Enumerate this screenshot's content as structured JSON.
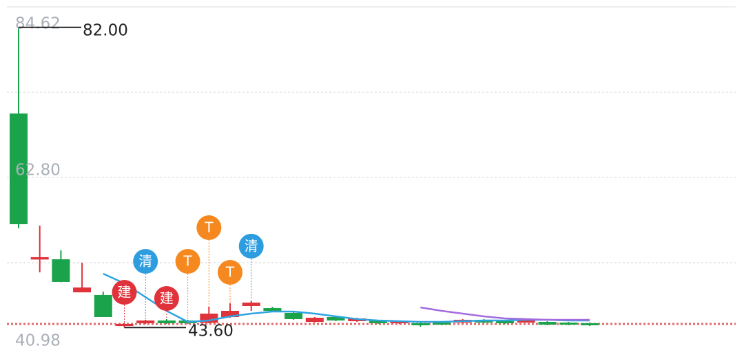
{
  "chart_data": {
    "type": "candlestick",
    "ylim": [
      40.98,
      84.62
    ],
    "yticks": [
      84.62,
      {
        "value": 62.8,
        "label": "62.80"
      },
      40.98
    ],
    "grid": [
      84.62,
      73.71,
      62.8,
      51.89
    ],
    "up_color": "#e0323a",
    "down_color": "#1aa34a",
    "open": [
      70.98,
      52.3,
      52.33,
      48.1,
      47.76,
      43.79,
      44.15,
      44.5,
      44.5,
      44.2,
      44.94,
      46.35,
      46.08,
      45.47,
      44.32,
      44.94,
      44.41,
      44.5,
      44.15,
      44.15,
      44.23,
      44.23,
      44.59,
      44.41,
      44.23,
      44.32,
      44.23,
      44.15
    ],
    "close": [
      56.82,
      52.6,
      49.43,
      48.72,
      44.94,
      44.06,
      44.5,
      44.15,
      44.15,
      45.38,
      45.73,
      46.79,
      45.73,
      44.68,
      44.85,
      44.5,
      44.76,
      44.15,
      44.41,
      43.89,
      43.97,
      44.59,
      44.23,
      44.15,
      44.5,
      43.97,
      43.97,
      43.89
    ],
    "high": [
      82.0,
      56.64,
      53.48,
      51.89,
      48.19,
      44.15,
      44.59,
      44.68,
      44.59,
      46.26,
      46.7,
      46.97,
      46.26,
      45.56,
      44.94,
      44.94,
      44.85,
      44.59,
      44.5,
      44.23,
      44.32,
      44.68,
      44.68,
      44.5,
      44.59,
      44.41,
      44.32,
      44.23
    ],
    "low": [
      56.29,
      50.66,
      49.4,
      48.1,
      44.94,
      43.6,
      44.06,
      44.06,
      44.06,
      44.15,
      44.85,
      45.73,
      45.64,
      44.59,
      44.23,
      44.41,
      44.32,
      44.06,
      44.06,
      43.7,
      43.89,
      44.15,
      44.15,
      44.06,
      44.41,
      43.89,
      43.89,
      43.79
    ],
    "lines": [
      {
        "color": "#2ea3e0",
        "values": [
          null,
          null,
          null,
          null,
          50.48,
          49.25,
          47.49,
          45.73,
          44.32,
          44.5,
          45.03,
          45.38,
          45.64,
          45.64,
          45.38,
          45.03,
          44.68,
          44.5,
          44.41,
          44.32,
          44.32,
          44.41,
          44.5,
          44.5,
          44.59,
          44.59,
          44.5,
          44.5
        ]
      },
      {
        "color": "#a46be0",
        "values": [
          null,
          null,
          null,
          null,
          null,
          null,
          null,
          null,
          null,
          null,
          null,
          null,
          null,
          null,
          null,
          null,
          null,
          null,
          null,
          46.17,
          45.73,
          45.38,
          45.03,
          44.76,
          44.68,
          44.59,
          44.59,
          44.59
        ]
      }
    ],
    "signals": [
      null,
      null,
      null,
      null,
      null,
      "建",
      "清",
      "建",
      "T",
      "T",
      "T",
      "清",
      null,
      null,
      null,
      null,
      null,
      null,
      null,
      null,
      null,
      null,
      null,
      null,
      null,
      null,
      null,
      null
    ],
    "signal_colors": {
      "建": "#e0323a",
      "清": "#2e9de0",
      "T": "#f5891f"
    },
    "price_line": {
      "value": 44.06,
      "color": "#e06a6a"
    },
    "max_label": {
      "value": 82,
      "label": "82.00"
    },
    "min_label": {
      "value": 43.6,
      "label": "43.60"
    }
  }
}
